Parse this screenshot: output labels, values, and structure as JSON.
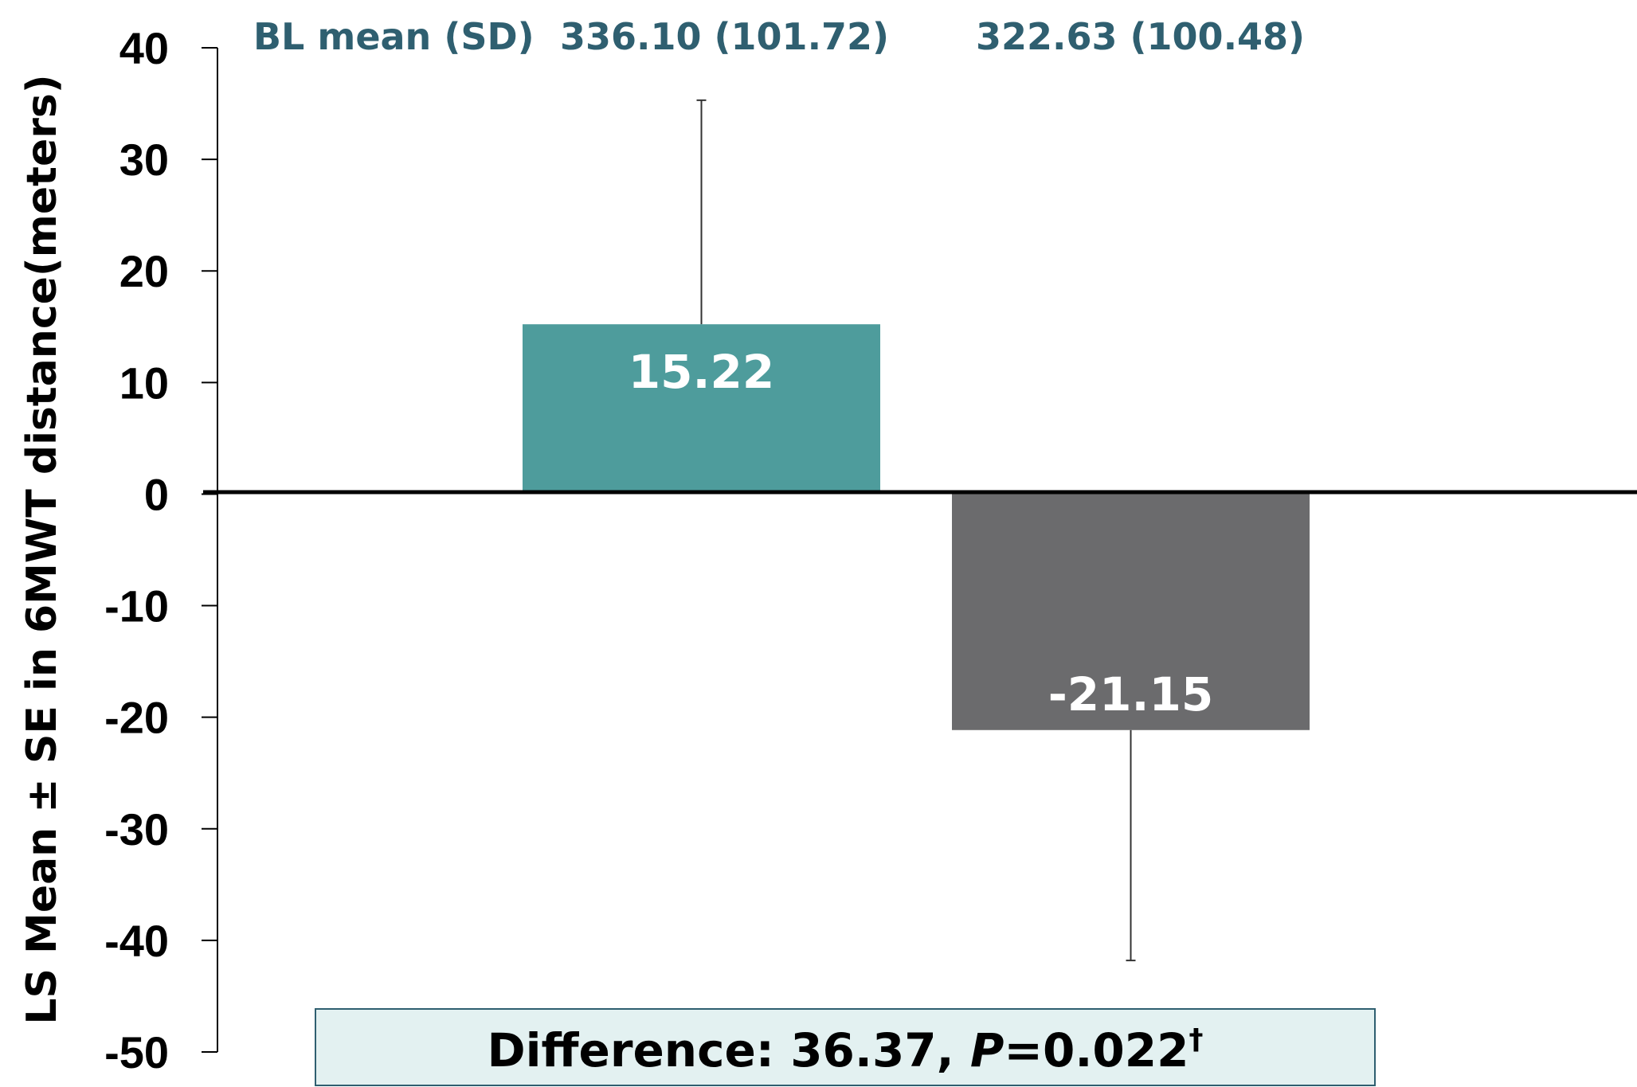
{
  "chart_data": {
    "type": "bar",
    "ylabel": "LS Mean ± SE in 6MWT distance(meters)",
    "ylim": [
      -50,
      40
    ],
    "yticks": [
      40,
      30,
      20,
      10,
      0,
      -10,
      -20,
      -30,
      -40,
      -50
    ],
    "bars": [
      {
        "value": 15.22,
        "label": "15.22",
        "se_bound": 35.3,
        "color": "#4e9c9c",
        "baseline": "336.10  (101.72)"
      },
      {
        "value": -21.15,
        "label": "-21.15",
        "se_bound": -41.8,
        "color": "#6b6b6d",
        "baseline": "322.63 (100.48)"
      }
    ],
    "baseline_header": "BL mean (SD)",
    "annotation": {
      "prefix": "Difference: 36.37, ",
      "p_letter": "P",
      "p_value": "=0.022",
      "dagger": "†"
    }
  }
}
